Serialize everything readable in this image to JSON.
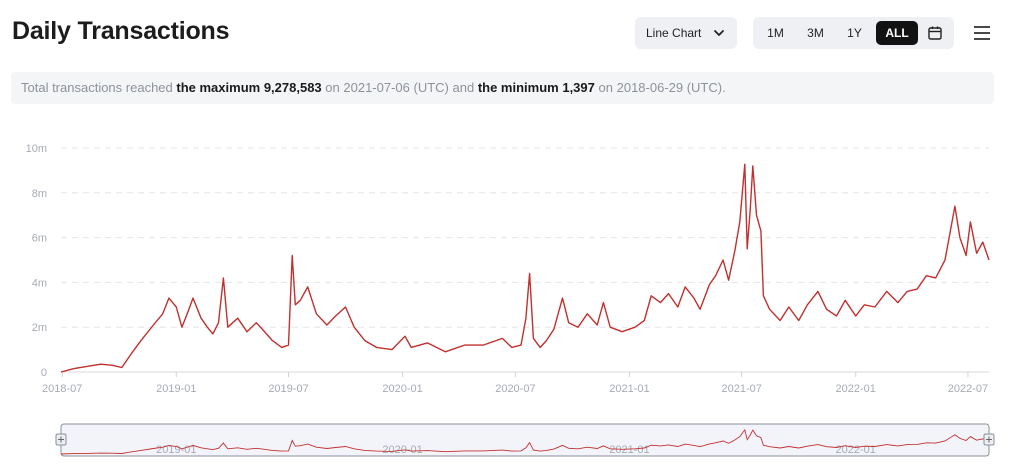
{
  "header": {
    "title": "Daily Transactions",
    "chart_type_select": "Line Chart",
    "ranges": [
      {
        "label": "1M",
        "active": false
      },
      {
        "label": "3M",
        "active": false
      },
      {
        "label": "1Y",
        "active": false
      },
      {
        "label": "ALL",
        "active": true
      }
    ],
    "calendar_icon": "calendar-icon",
    "menu_icon": "hamburger-menu-icon"
  },
  "summary": {
    "prefix": "Total transactions reached",
    "max_label": "the maximum",
    "max_value": "9,278,583",
    "on1": "on",
    "max_date": "2021-07-06 (UTC) and",
    "min_label": "the minimum",
    "min_value": "1,397",
    "on2": "on",
    "min_date": "2018-06-29 (UTC)."
  },
  "chart_data": {
    "type": "line",
    "title": "",
    "xlabel": "",
    "ylabel": "",
    "color": "#c0312f",
    "x_ticks": [
      "2018-07",
      "2019-01",
      "2019-07",
      "2020-01",
      "2020-07",
      "2021-01",
      "2021-07",
      "2022-01",
      "2022-07"
    ],
    "y_ticks": [
      "0",
      "2m",
      "4m",
      "6m",
      "8m",
      "10m"
    ],
    "ylim": [
      0,
      10000000
    ],
    "xlim": [
      "2018-06-29",
      "2022-08-04"
    ],
    "grid": true,
    "navigator_labels": [
      "2019-01",
      "2020-01",
      "2021-01",
      "2022-01"
    ],
    "points": [
      [
        "2018-06-29",
        1397
      ],
      [
        "2018-07-20",
        150000
      ],
      [
        "2018-08-10",
        250000
      ],
      [
        "2018-09-01",
        350000
      ],
      [
        "2018-09-20",
        300000
      ],
      [
        "2018-10-05",
        200000
      ],
      [
        "2018-10-20",
        800000
      ],
      [
        "2018-11-05",
        1400000
      ],
      [
        "2018-11-25",
        2100000
      ],
      [
        "2018-12-10",
        2600000
      ],
      [
        "2018-12-20",
        3300000
      ],
      [
        "2019-01-01",
        2900000
      ],
      [
        "2019-01-10",
        2000000
      ],
      [
        "2019-01-20",
        2700000
      ],
      [
        "2019-01-28",
        3300000
      ],
      [
        "2019-02-10",
        2400000
      ],
      [
        "2019-02-20",
        2000000
      ],
      [
        "2019-03-01",
        1700000
      ],
      [
        "2019-03-10",
        2200000
      ],
      [
        "2019-03-18",
        4200000
      ],
      [
        "2019-03-25",
        2000000
      ],
      [
        "2019-04-10",
        2400000
      ],
      [
        "2019-04-25",
        1800000
      ],
      [
        "2019-05-10",
        2200000
      ],
      [
        "2019-05-20",
        1900000
      ],
      [
        "2019-06-05",
        1400000
      ],
      [
        "2019-06-20",
        1100000
      ],
      [
        "2019-07-01",
        1200000
      ],
      [
        "2019-07-07",
        5200000
      ],
      [
        "2019-07-12",
        3000000
      ],
      [
        "2019-07-20",
        3200000
      ],
      [
        "2019-08-01",
        3800000
      ],
      [
        "2019-08-15",
        2600000
      ],
      [
        "2019-09-01",
        2100000
      ],
      [
        "2019-09-15",
        2500000
      ],
      [
        "2019-10-01",
        2900000
      ],
      [
        "2019-10-15",
        2000000
      ],
      [
        "2019-11-01",
        1400000
      ],
      [
        "2019-11-20",
        1100000
      ],
      [
        "2019-12-15",
        1000000
      ],
      [
        "2020-01-05",
        1600000
      ],
      [
        "2020-01-15",
        1100000
      ],
      [
        "2020-02-10",
        1300000
      ],
      [
        "2020-03-10",
        900000
      ],
      [
        "2020-04-10",
        1200000
      ],
      [
        "2020-05-10",
        1200000
      ],
      [
        "2020-06-10",
        1500000
      ],
      [
        "2020-06-25",
        1100000
      ],
      [
        "2020-07-10",
        1200000
      ],
      [
        "2020-07-18",
        2400000
      ],
      [
        "2020-07-24",
        4400000
      ],
      [
        "2020-07-30",
        1500000
      ],
      [
        "2020-08-10",
        1100000
      ],
      [
        "2020-08-20",
        1400000
      ],
      [
        "2020-09-01",
        1900000
      ],
      [
        "2020-09-15",
        3300000
      ],
      [
        "2020-09-25",
        2200000
      ],
      [
        "2020-10-10",
        2000000
      ],
      [
        "2020-10-25",
        2600000
      ],
      [
        "2020-11-10",
        2100000
      ],
      [
        "2020-11-20",
        3100000
      ],
      [
        "2020-12-01",
        2000000
      ],
      [
        "2020-12-20",
        1800000
      ],
      [
        "2021-01-10",
        2000000
      ],
      [
        "2021-01-25",
        2300000
      ],
      [
        "2021-02-05",
        3400000
      ],
      [
        "2021-02-20",
        3100000
      ],
      [
        "2021-03-05",
        3500000
      ],
      [
        "2021-03-20",
        2900000
      ],
      [
        "2021-04-01",
        3800000
      ],
      [
        "2021-04-15",
        3300000
      ],
      [
        "2021-04-25",
        2800000
      ],
      [
        "2021-05-10",
        3900000
      ],
      [
        "2021-05-20",
        4300000
      ],
      [
        "2021-06-01",
        5000000
      ],
      [
        "2021-06-10",
        4100000
      ],
      [
        "2021-06-20",
        5400000
      ],
      [
        "2021-06-28",
        6700000
      ],
      [
        "2021-07-06",
        9278583
      ],
      [
        "2021-07-10",
        5500000
      ],
      [
        "2021-07-15",
        7300000
      ],
      [
        "2021-07-19",
        9200000
      ],
      [
        "2021-07-25",
        7000000
      ],
      [
        "2021-08-01",
        6300000
      ],
      [
        "2021-08-05",
        3400000
      ],
      [
        "2021-08-15",
        2800000
      ],
      [
        "2021-09-01",
        2300000
      ],
      [
        "2021-09-15",
        2900000
      ],
      [
        "2021-10-01",
        2300000
      ],
      [
        "2021-10-15",
        3000000
      ],
      [
        "2021-11-01",
        3600000
      ],
      [
        "2021-11-15",
        2800000
      ],
      [
        "2021-12-01",
        2500000
      ],
      [
        "2021-12-15",
        3200000
      ],
      [
        "2022-01-01",
        2500000
      ],
      [
        "2022-01-15",
        3000000
      ],
      [
        "2022-02-01",
        2900000
      ],
      [
        "2022-02-20",
        3600000
      ],
      [
        "2022-03-10",
        3100000
      ],
      [
        "2022-03-25",
        3600000
      ],
      [
        "2022-04-10",
        3700000
      ],
      [
        "2022-04-25",
        4300000
      ],
      [
        "2022-05-10",
        4200000
      ],
      [
        "2022-05-25",
        5000000
      ],
      [
        "2022-06-10",
        7400000
      ],
      [
        "2022-06-18",
        6000000
      ],
      [
        "2022-06-28",
        5200000
      ],
      [
        "2022-07-05",
        6700000
      ],
      [
        "2022-07-15",
        5300000
      ],
      [
        "2022-07-25",
        5800000
      ],
      [
        "2022-08-04",
        5000000
      ]
    ]
  }
}
